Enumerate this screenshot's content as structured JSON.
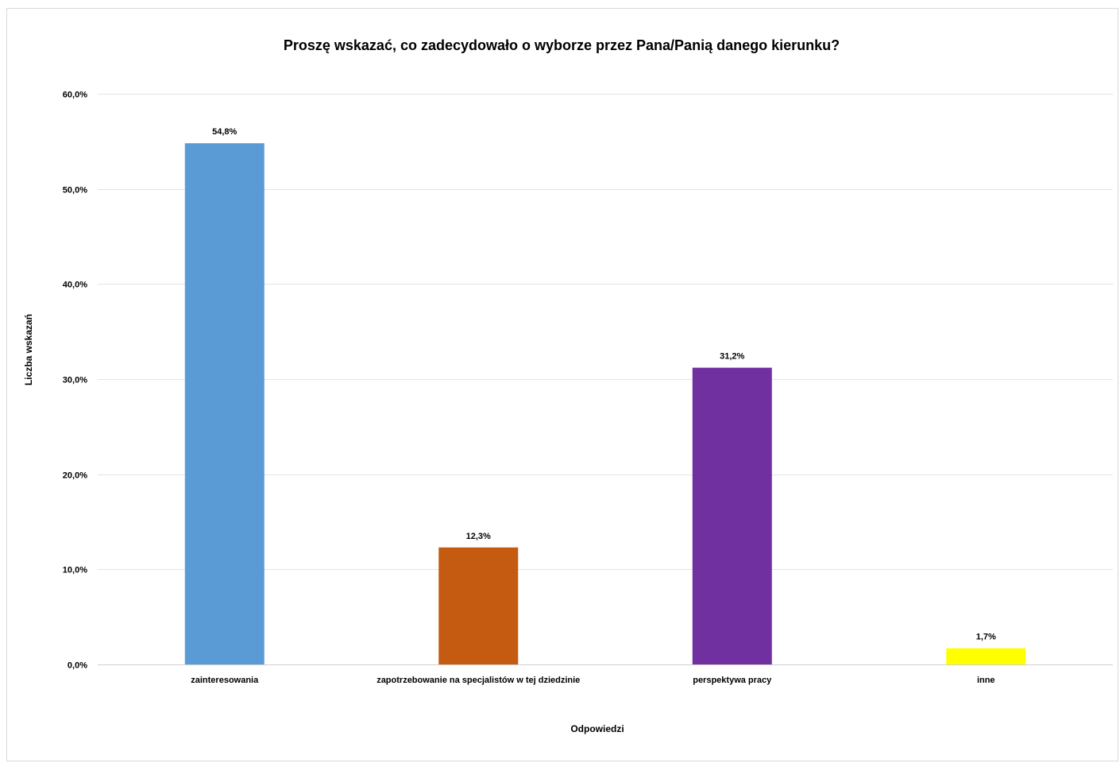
{
  "chart_data": {
    "type": "bar",
    "title": "Proszę wskazać, co zadecydowało o wyborze przez Pana/Panią  danego kierunku?",
    "xlabel": "Odpowiedzi",
    "ylabel": "Liczba wskazań",
    "categories": [
      "zainteresowania",
      "zapotrzebowanie na specjalistów w tej dziedzinie",
      "perspektywa pracy",
      "inne"
    ],
    "values": [
      54.8,
      12.3,
      31.2,
      1.7
    ],
    "value_labels": [
      "54,8%",
      "12,3%",
      "31,2%",
      "1,7%"
    ],
    "bar_colors": [
      "#5B9BD5",
      "#C55A11",
      "#7030A0",
      "#FFFF00"
    ],
    "ylim": [
      0,
      60
    ],
    "yticks": [
      0,
      10,
      20,
      30,
      40,
      50,
      60
    ],
    "ytick_labels": [
      "0,0%",
      "10,0%",
      "20,0%",
      "30,0%",
      "40,0%",
      "50,0%",
      "60,0%"
    ],
    "grid": true,
    "legend": "none"
  }
}
